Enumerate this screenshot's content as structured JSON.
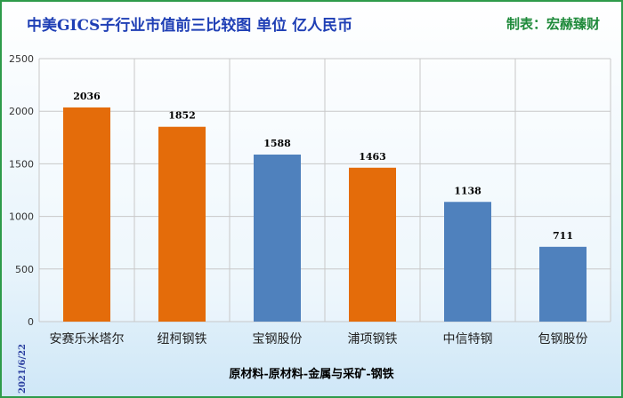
{
  "header": {
    "title": "中美GICS子行业市值前三比较图 单位 亿人民币",
    "maker": "制表：宏赫臻财"
  },
  "footer": {
    "date": "2021/6/22",
    "industry": "原材料-原材料-金属与采矿-钢铁"
  },
  "colors": {
    "orange": "#E46C0A",
    "blue": "#4F81BD",
    "title": "#1F3FB5",
    "maker": "#1F8A3B",
    "frame": "#2E9B4A"
  },
  "chart_data": {
    "type": "bar",
    "categories": [
      "安赛乐米塔尔",
      "纽柯钢铁",
      "宝钢股份",
      "浦项钢铁",
      "中信特钢",
      "包钢股份"
    ],
    "values": [
      2036,
      1852,
      1588,
      1463,
      1138,
      711
    ],
    "value_labels": [
      "2036",
      "1852",
      "1588",
      "1463",
      "1138",
      "711"
    ],
    "bar_colors": [
      "#E46C0A",
      "#E46C0A",
      "#4F81BD",
      "#E46C0A",
      "#4F81BD",
      "#4F81BD"
    ],
    "yticks": [
      0,
      500,
      1000,
      1500,
      2000,
      2500
    ],
    "ytick_labels": [
      "0",
      "500",
      "1000",
      "1500",
      "2000",
      "2500"
    ],
    "ylim": [
      0,
      2500
    ],
    "grid": true,
    "legend": "none"
  }
}
